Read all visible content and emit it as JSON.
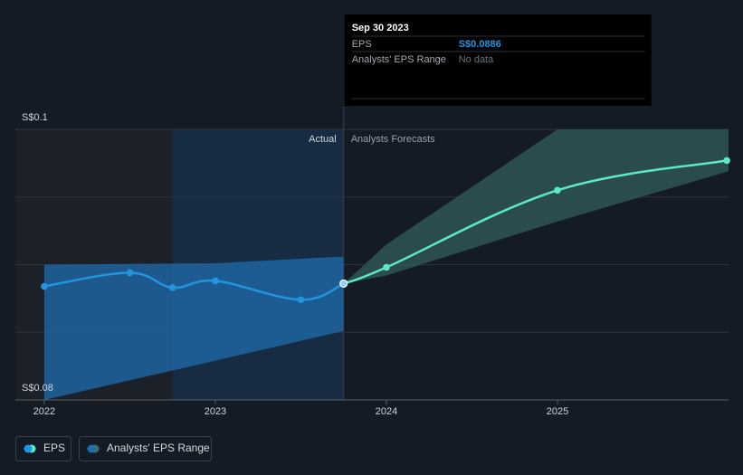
{
  "chart_data": {
    "type": "line",
    "xlim": [
      2021.831,
      2026
    ],
    "xticks": [
      2022,
      2023,
      2024,
      2025
    ],
    "ylim": [
      0.08,
      0.1
    ],
    "yticks": [
      {
        "value": 0.08,
        "label": "S$0.08"
      },
      {
        "value": 0.1,
        "label": "S$0.1"
      }
    ],
    "ygrid": [
      0.085,
      0.09,
      0.095
    ],
    "actual_label": "Actual",
    "forecast_label": "Analysts Forecasts",
    "series": [
      {
        "name": "EPS",
        "color": "#2394df",
        "forecast_color": "#5de8c8",
        "forecast_from_index": 5,
        "x": [
          2022,
          2022.5,
          2022.75,
          2023,
          2023.5,
          2023.75,
          2024,
          2025,
          2025.99
        ],
        "values": [
          0.0884,
          0.0894,
          0.0883,
          0.0888,
          0.0874,
          0.0886,
          0.0898,
          0.0955,
          0.0977
        ]
      }
    ],
    "range": {
      "name": "Analysts' EPS Range",
      "color": "#3f716c",
      "segments": [
        {
          "color": "#1f6cae",
          "x": [
            2022,
            2023,
            2023.75
          ],
          "low": [
            0.08,
            0.0829,
            0.0851
          ],
          "high": [
            0.09,
            0.0901,
            0.0906
          ]
        },
        {
          "color": "#325e59",
          "x": [
            2023.75,
            2024,
            2025,
            2026
          ],
          "low": [
            0.0886,
            0.0892,
            0.0932,
            0.0969
          ],
          "high": [
            0.0886,
            0.0915,
            0.1,
            0.1
          ]
        }
      ]
    },
    "tooltip": {
      "date": "Sep 30 2023",
      "index": 5,
      "rows": [
        {
          "label": "EPS",
          "value": "S$0.0886"
        },
        {
          "label": "Analysts' EPS Range",
          "value": "No data"
        }
      ]
    }
  }
}
